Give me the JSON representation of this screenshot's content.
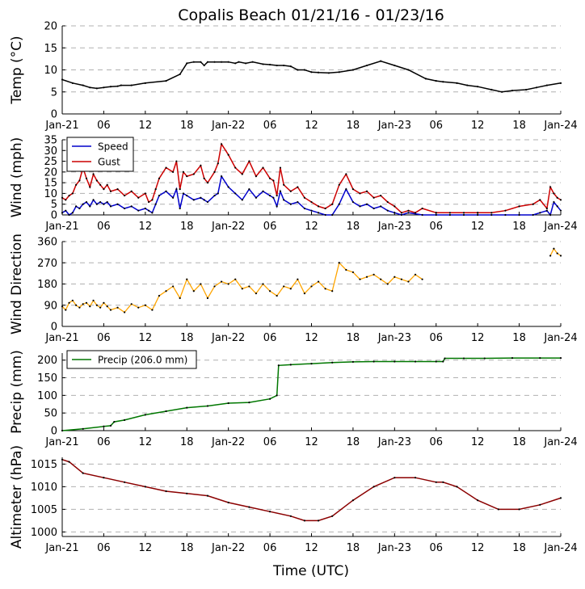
{
  "title": "Copalis Beach 01/21/16 - 01/23/16",
  "xlabel": "Time (UTC)",
  "x_ticks": [
    "Jan-21",
    "06",
    "12",
    "18",
    "Jan-22",
    "06",
    "12",
    "18",
    "Jan-23",
    "06",
    "12",
    "18",
    "Jan-24"
  ],
  "colors": {
    "temp": "#000000",
    "speed": "#0000cc",
    "gust": "#cc0000",
    "dir": "#ffa500",
    "precip": "#007700",
    "alt": "#8b0000",
    "grid": "#b0b0b0"
  },
  "chart_data": [
    {
      "id": "temp",
      "type": "line",
      "ylabel": "Temp (°C)",
      "ylim": [
        0,
        20
      ],
      "yticks": [
        0,
        5,
        10,
        15,
        20
      ],
      "series": [
        {
          "name": "Temp",
          "color_key": "temp",
          "x": [
            0,
            3,
            6,
            8,
            10,
            12,
            14,
            16,
            17,
            20,
            24,
            30,
            34,
            36,
            38,
            40,
            41,
            42,
            44,
            46,
            48,
            50,
            51,
            53,
            55,
            58,
            60,
            62,
            64,
            66,
            68,
            70,
            72,
            74,
            77,
            80,
            84,
            88,
            92,
            96,
            100,
            105,
            108,
            110,
            114,
            117,
            120,
            124,
            127,
            130,
            134,
            137,
            140,
            144
          ],
          "y": [
            7.8,
            7,
            6.5,
            6,
            5.8,
            6,
            6.2,
            6.3,
            6.5,
            6.5,
            7,
            7.5,
            9,
            11.5,
            11.8,
            11.8,
            11,
            11.8,
            11.8,
            11.8,
            11.8,
            11.5,
            11.8,
            11.5,
            11.8,
            11.3,
            11.2,
            11,
            11,
            10.8,
            10,
            10,
            9.5,
            9.4,
            9.3,
            9.5,
            10,
            11,
            12,
            11,
            10,
            8,
            7.5,
            7.3,
            7,
            6.5,
            6.2,
            5.5,
            5,
            5.3,
            5.5,
            6,
            6.5,
            7
          ]
        }
      ]
    },
    {
      "id": "wind",
      "type": "line",
      "ylabel": "Wind (mph)",
      "ylim": [
        0,
        35
      ],
      "yticks": [
        0,
        5,
        10,
        15,
        20,
        25,
        30,
        35
      ],
      "legend": [
        {
          "name": "Speed",
          "color_key": "speed"
        },
        {
          "name": "Gust",
          "color_key": "gust"
        }
      ],
      "series": [
        {
          "name": "Speed",
          "color_key": "speed",
          "x": [
            0,
            1,
            2,
            3,
            4,
            5,
            6,
            7,
            8,
            9,
            10,
            11,
            12,
            13,
            14,
            16,
            18,
            20,
            22,
            24,
            25,
            26,
            27,
            28,
            30,
            32,
            33,
            34,
            35,
            36,
            38,
            40,
            41,
            42,
            44,
            45,
            46,
            48,
            50,
            52,
            54,
            56,
            58,
            60,
            61,
            62,
            63,
            64,
            66,
            68,
            70,
            72,
            74,
            76,
            78,
            80,
            82,
            84,
            86,
            88,
            90,
            92,
            94,
            96,
            98,
            100,
            104,
            108,
            112,
            116,
            120,
            124,
            128,
            132,
            136,
            138,
            140,
            141,
            142,
            143,
            144
          ],
          "y": [
            1,
            2,
            0,
            1,
            4,
            3,
            5,
            6,
            4,
            7,
            5,
            6,
            5,
            6,
            4,
            5,
            3,
            4,
            2,
            3,
            2,
            1,
            5,
            9,
            11,
            8,
            12,
            3,
            10,
            9,
            7,
            8,
            7,
            6,
            9,
            10,
            18,
            13,
            10,
            7,
            12,
            8,
            11,
            9,
            8,
            4,
            11,
            7,
            5,
            6,
            3,
            2,
            1,
            0,
            0,
            5,
            12,
            6,
            4,
            5,
            3,
            4,
            2,
            1,
            0,
            1,
            0,
            0,
            0,
            0,
            0,
            0,
            0,
            0,
            0,
            1,
            2,
            0,
            6,
            4,
            2
          ]
        },
        {
          "name": "Gust",
          "color_key": "gust",
          "x": [
            0,
            1,
            2,
            3,
            4,
            5,
            6,
            7,
            8,
            9,
            10,
            11,
            12,
            13,
            14,
            16,
            18,
            20,
            22,
            24,
            25,
            26,
            27,
            28,
            30,
            32,
            33,
            34,
            35,
            36,
            38,
            40,
            41,
            42,
            44,
            45,
            46,
            48,
            50,
            52,
            54,
            56,
            58,
            60,
            61,
            62,
            63,
            64,
            66,
            68,
            70,
            72,
            74,
            76,
            78,
            80,
            82,
            84,
            86,
            88,
            90,
            92,
            94,
            96,
            98,
            100,
            102,
            104,
            108,
            112,
            116,
            120,
            124,
            128,
            132,
            136,
            138,
            140,
            141,
            142,
            143,
            144
          ],
          "y": [
            8,
            7,
            9,
            10,
            14,
            16,
            22,
            17,
            13,
            19,
            16,
            14,
            12,
            14,
            11,
            12,
            9,
            11,
            8,
            10,
            6,
            7,
            12,
            17,
            22,
            20,
            25,
            12,
            20,
            18,
            19,
            23,
            17,
            15,
            20,
            24,
            33,
            28,
            22,
            19,
            25,
            18,
            22,
            17,
            16,
            9,
            22,
            14,
            11,
            13,
            8,
            6,
            4,
            3,
            5,
            14,
            19,
            12,
            10,
            11,
            8,
            9,
            6,
            4,
            1,
            2,
            1,
            3,
            1,
            1,
            1,
            1,
            1,
            2,
            4,
            5,
            7,
            3,
            13,
            10,
            8,
            7
          ]
        }
      ]
    },
    {
      "id": "dir",
      "type": "scatter",
      "ylabel": "Wind Direction",
      "ylim": [
        0,
        360
      ],
      "yticks": [
        0,
        90,
        180,
        270,
        360
      ],
      "series": [
        {
          "name": "Wind Direction",
          "color_key": "dir",
          "x": [
            0,
            1,
            2,
            3,
            4,
            5,
            6,
            7,
            8,
            9,
            10,
            11,
            12,
            13,
            14,
            16,
            18,
            20,
            22,
            24,
            26,
            28,
            30,
            32,
            34,
            36,
            38,
            40,
            42,
            44,
            46,
            48,
            50,
            52,
            54,
            56,
            58,
            60,
            62,
            64,
            66,
            68,
            70,
            72,
            74,
            76,
            78,
            80,
            82,
            84,
            86,
            88,
            90,
            92,
            94,
            96,
            98,
            100,
            102,
            104,
            141,
            142,
            143,
            144
          ],
          "y": [
            85,
            70,
            100,
            110,
            90,
            80,
            95,
            100,
            85,
            110,
            90,
            80,
            100,
            85,
            70,
            80,
            60,
            95,
            80,
            90,
            70,
            130,
            150,
            170,
            120,
            200,
            150,
            180,
            120,
            170,
            190,
            180,
            200,
            160,
            170,
            140,
            180,
            150,
            130,
            170,
            160,
            200,
            140,
            170,
            190,
            160,
            150,
            270,
            240,
            230,
            200,
            210,
            220,
            200,
            180,
            210,
            200,
            190,
            220,
            200,
            300,
            330,
            310,
            300
          ]
        }
      ]
    },
    {
      "id": "precip",
      "type": "line",
      "ylabel": "Precip (mm)",
      "ylim": [
        0,
        220
      ],
      "yticks": [
        0,
        50,
        100,
        150,
        200
      ],
      "legend": [
        {
          "name": "Precip (206.0 mm)",
          "color_key": "precip"
        }
      ],
      "series": [
        {
          "name": "Precip (206.0 mm)",
          "color_key": "precip",
          "x": [
            0,
            6,
            12,
            14,
            15,
            18,
            24,
            30,
            36,
            42,
            48,
            54,
            60,
            62,
            62.5,
            66,
            72,
            78,
            84,
            90,
            96,
            102,
            108,
            110,
            110.5,
            116,
            122,
            130,
            138,
            144
          ],
          "y": [
            0,
            5,
            12,
            14,
            25,
            30,
            45,
            55,
            65,
            70,
            78,
            80,
            90,
            100,
            185,
            187,
            190,
            193,
            195,
            196,
            196,
            196,
            196,
            196,
            205,
            205,
            205,
            206,
            206,
            206
          ]
        }
      ]
    },
    {
      "id": "alt",
      "type": "line",
      "ylabel": "Altimeter (hPa)",
      "ylim": [
        999,
        1016.5
      ],
      "yticks": [
        1000,
        1005,
        1010,
        1015
      ],
      "series": [
        {
          "name": "Altimeter",
          "color_key": "alt",
          "x": [
            0,
            2,
            6,
            12,
            18,
            24,
            30,
            36,
            42,
            48,
            54,
            60,
            66,
            70,
            74,
            78,
            84,
            90,
            96,
            102,
            108,
            110,
            114,
            120,
            126,
            132,
            138,
            144
          ],
          "y": [
            1016,
            1015.5,
            1013,
            1012,
            1011,
            1010,
            1009,
            1008.5,
            1008,
            1006.5,
            1005.5,
            1004.5,
            1003.5,
            1002.5,
            1002.5,
            1003.5,
            1007,
            1010,
            1012,
            1012,
            1011,
            1011,
            1010,
            1007,
            1005,
            1005,
            1006,
            1007.5
          ]
        }
      ]
    }
  ]
}
